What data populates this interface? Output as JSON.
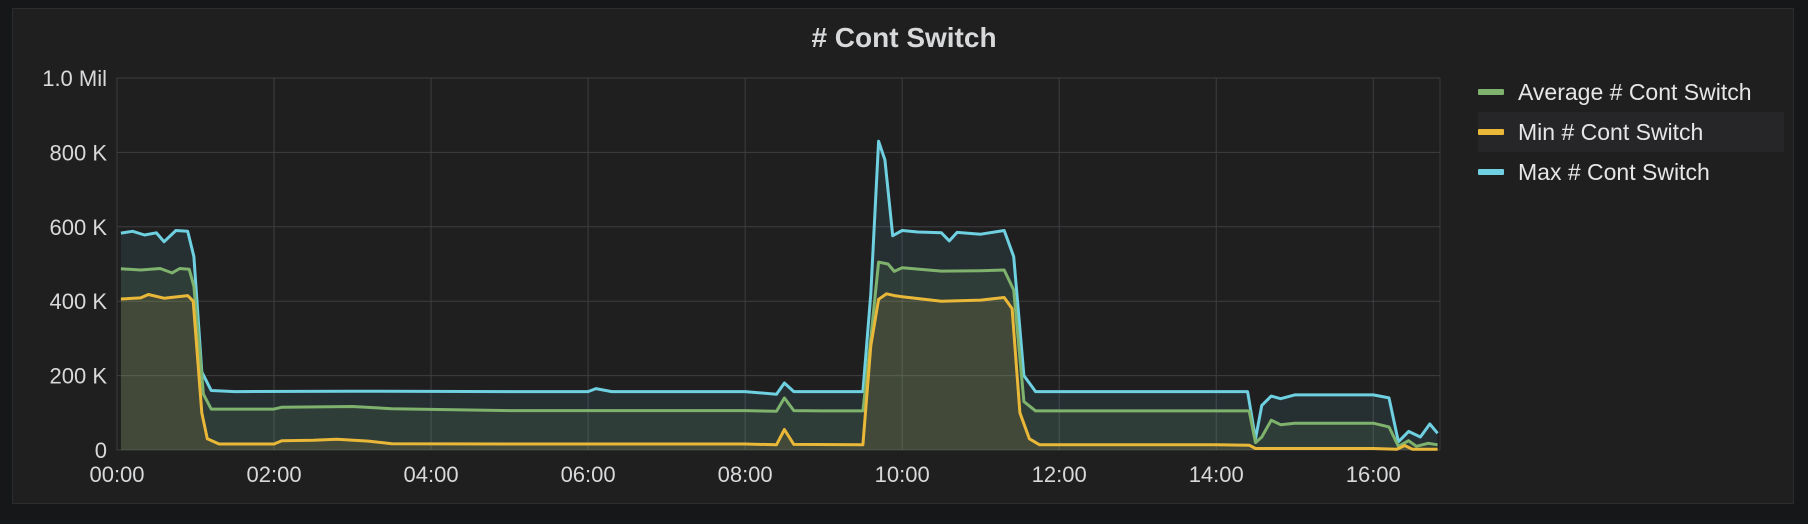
{
  "panel": {
    "title": "# Cont Switch"
  },
  "chart_data": {
    "type": "area",
    "title": "# Cont Switch",
    "xlabel": "",
    "ylabel": "",
    "x_unit": "hours since 00:00",
    "xlim": [
      0,
      16.85
    ],
    "ylim": [
      0,
      1000000
    ],
    "y_ticks": [
      {
        "value": 0,
        "label": "0"
      },
      {
        "value": 200000,
        "label": "200 K"
      },
      {
        "value": 400000,
        "label": "400 K"
      },
      {
        "value": 600000,
        "label": "600 K"
      },
      {
        "value": 800000,
        "label": "800 K"
      },
      {
        "value": 1000000,
        "label": "1.0 Mil"
      }
    ],
    "x_ticks": [
      {
        "value": 0,
        "label": "00:00"
      },
      {
        "value": 2,
        "label": "02:00"
      },
      {
        "value": 4,
        "label": "04:00"
      },
      {
        "value": 6,
        "label": "06:00"
      },
      {
        "value": 8,
        "label": "08:00"
      },
      {
        "value": 10,
        "label": "10:00"
      },
      {
        "value": 12,
        "label": "12:00"
      },
      {
        "value": 14,
        "label": "14:00"
      },
      {
        "value": 16,
        "label": "16:00"
      }
    ],
    "grid": true,
    "legend_position": "right",
    "series": [
      {
        "name": "Average # Cont Switch",
        "color": "#7eb26d",
        "points": [
          [
            0.05,
            487000
          ],
          [
            0.3,
            484000
          ],
          [
            0.55,
            488000
          ],
          [
            0.7,
            476000
          ],
          [
            0.8,
            488000
          ],
          [
            0.92,
            486000
          ],
          [
            0.98,
            440000
          ],
          [
            1.1,
            150000
          ],
          [
            1.2,
            110000
          ],
          [
            2,
            110000
          ],
          [
            2.1,
            115000
          ],
          [
            3,
            117000
          ],
          [
            3.5,
            111000
          ],
          [
            5,
            106000
          ],
          [
            6,
            106000
          ],
          [
            7,
            106000
          ],
          [
            8,
            106000
          ],
          [
            8.4,
            104000
          ],
          [
            8.5,
            140000
          ],
          [
            8.62,
            106000
          ],
          [
            9,
            105000
          ],
          [
            9.5,
            105000
          ],
          [
            9.6,
            300000
          ],
          [
            9.7,
            505000
          ],
          [
            9.82,
            500000
          ],
          [
            9.9,
            480000
          ],
          [
            10,
            490000
          ],
          [
            10.5,
            481000
          ],
          [
            11,
            482000
          ],
          [
            11.3,
            484000
          ],
          [
            11.42,
            430000
          ],
          [
            11.55,
            130000
          ],
          [
            11.7,
            105000
          ],
          [
            12,
            105000
          ],
          [
            13,
            105000
          ],
          [
            14,
            105000
          ],
          [
            14.42,
            105000
          ],
          [
            14.5,
            20000
          ],
          [
            14.58,
            35000
          ],
          [
            14.7,
            80000
          ],
          [
            14.82,
            68000
          ],
          [
            15,
            72000
          ],
          [
            15.5,
            72000
          ],
          [
            16,
            72000
          ],
          [
            16.2,
            62000
          ],
          [
            16.32,
            10000
          ],
          [
            16.45,
            25000
          ],
          [
            16.55,
            10000
          ],
          [
            16.7,
            18000
          ],
          [
            16.82,
            14000
          ]
        ]
      },
      {
        "name": "Min # Cont Switch",
        "color": "#eab839",
        "points": [
          [
            0.05,
            406000
          ],
          [
            0.3,
            409000
          ],
          [
            0.4,
            418000
          ],
          [
            0.6,
            408000
          ],
          [
            0.9,
            415000
          ],
          [
            0.97,
            400000
          ],
          [
            1.08,
            100000
          ],
          [
            1.15,
            30000
          ],
          [
            1.3,
            16000
          ],
          [
            2,
            16000
          ],
          [
            2.1,
            25000
          ],
          [
            2.5,
            26000
          ],
          [
            2.8,
            29000
          ],
          [
            3.2,
            24000
          ],
          [
            3.5,
            17000
          ],
          [
            5,
            16000
          ],
          [
            6,
            16000
          ],
          [
            7,
            16000
          ],
          [
            8,
            16000
          ],
          [
            8.4,
            14000
          ],
          [
            8.5,
            55000
          ],
          [
            8.62,
            15000
          ],
          [
            9.5,
            14000
          ],
          [
            9.6,
            280000
          ],
          [
            9.7,
            405000
          ],
          [
            9.8,
            420000
          ],
          [
            9.9,
            415000
          ],
          [
            10,
            412000
          ],
          [
            10.5,
            400000
          ],
          [
            11,
            403000
          ],
          [
            11.3,
            410000
          ],
          [
            11.4,
            380000
          ],
          [
            11.5,
            100000
          ],
          [
            11.62,
            30000
          ],
          [
            11.75,
            14000
          ],
          [
            12,
            14000
          ],
          [
            13,
            14000
          ],
          [
            14,
            14000
          ],
          [
            14.42,
            13000
          ],
          [
            14.5,
            4000
          ],
          [
            15,
            4000
          ],
          [
            16,
            4000
          ],
          [
            16.3,
            2000
          ],
          [
            16.4,
            12000
          ],
          [
            16.5,
            2000
          ],
          [
            16.82,
            2000
          ]
        ]
      },
      {
        "name": "Max # Cont Switch",
        "color": "#6ed0e0",
        "points": [
          [
            0.05,
            583000
          ],
          [
            0.2,
            588000
          ],
          [
            0.35,
            578000
          ],
          [
            0.5,
            584000
          ],
          [
            0.6,
            560000
          ],
          [
            0.75,
            590000
          ],
          [
            0.9,
            588000
          ],
          [
            0.98,
            520000
          ],
          [
            1.08,
            210000
          ],
          [
            1.2,
            160000
          ],
          [
            1.5,
            157000
          ],
          [
            3,
            158000
          ],
          [
            5,
            157000
          ],
          [
            6,
            157000
          ],
          [
            6.1,
            165000
          ],
          [
            6.3,
            157000
          ],
          [
            7,
            157000
          ],
          [
            8,
            157000
          ],
          [
            8.4,
            150000
          ],
          [
            8.5,
            180000
          ],
          [
            8.62,
            157000
          ],
          [
            9.5,
            157000
          ],
          [
            9.6,
            420000
          ],
          [
            9.7,
            830000
          ],
          [
            9.78,
            780000
          ],
          [
            9.88,
            576000
          ],
          [
            10,
            590000
          ],
          [
            10.2,
            586000
          ],
          [
            10.5,
            584000
          ],
          [
            10.6,
            562000
          ],
          [
            10.7,
            585000
          ],
          [
            11,
            580000
          ],
          [
            11.3,
            590000
          ],
          [
            11.42,
            520000
          ],
          [
            11.55,
            200000
          ],
          [
            11.7,
            157000
          ],
          [
            12,
            157000
          ],
          [
            13,
            157000
          ],
          [
            14,
            157000
          ],
          [
            14.4,
            157000
          ],
          [
            14.5,
            30000
          ],
          [
            14.58,
            120000
          ],
          [
            14.7,
            145000
          ],
          [
            14.82,
            138000
          ],
          [
            15,
            148000
          ],
          [
            15.5,
            148000
          ],
          [
            16,
            148000
          ],
          [
            16.2,
            140000
          ],
          [
            16.32,
            22000
          ],
          [
            16.45,
            50000
          ],
          [
            16.6,
            35000
          ],
          [
            16.72,
            70000
          ],
          [
            16.82,
            45000
          ]
        ]
      }
    ]
  },
  "legend": [
    {
      "label": "Average # Cont Switch",
      "color": "#7eb26d"
    },
    {
      "label": "Min # Cont Switch",
      "color": "#eab839"
    },
    {
      "label": "Max # Cont Switch",
      "color": "#6ed0e0"
    }
  ]
}
